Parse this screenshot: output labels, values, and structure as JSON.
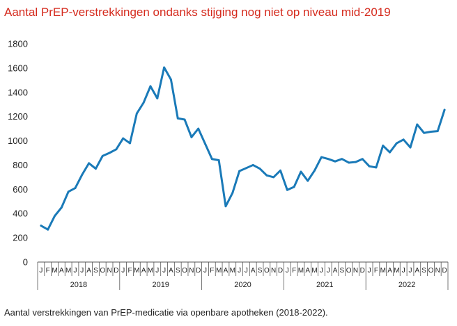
{
  "chart_data": {
    "type": "line",
    "title": "Aantal PrEP-verstrekkingen ondanks stijging nog niet op niveau mid-2019",
    "caption": "Aantal verstrekkingen van PrEP-medicatie via openbare apotheken (2018-2022).",
    "ylim": [
      0,
      1800
    ],
    "yticks": [
      0,
      200,
      400,
      600,
      800,
      1000,
      1200,
      1400,
      1600,
      1800
    ],
    "grid": false,
    "month_labels": [
      "J",
      "F",
      "M",
      "A",
      "M",
      "J",
      "J",
      "A",
      "S",
      "O",
      "N",
      "D"
    ],
    "years": [
      "2018",
      "2019",
      "2020",
      "2021",
      "2022"
    ],
    "series": [
      {
        "color": "#1a7ab8",
        "values": [
          300,
          268,
          380,
          450,
          580,
          610,
          720,
          815,
          770,
          875,
          900,
          930,
          1020,
          980,
          1225,
          1315,
          1450,
          1350,
          1605,
          1505,
          1185,
          1175,
          1030,
          1100,
          975,
          850,
          840,
          460,
          570,
          750,
          775,
          800,
          770,
          715,
          700,
          755,
          595,
          620,
          745,
          670,
          755,
          865,
          850,
          830,
          850,
          820,
          825,
          850,
          790,
          780,
          960,
          905,
          980,
          1010,
          945,
          1135,
          1065,
          1075,
          1080,
          1255
        ]
      }
    ]
  }
}
